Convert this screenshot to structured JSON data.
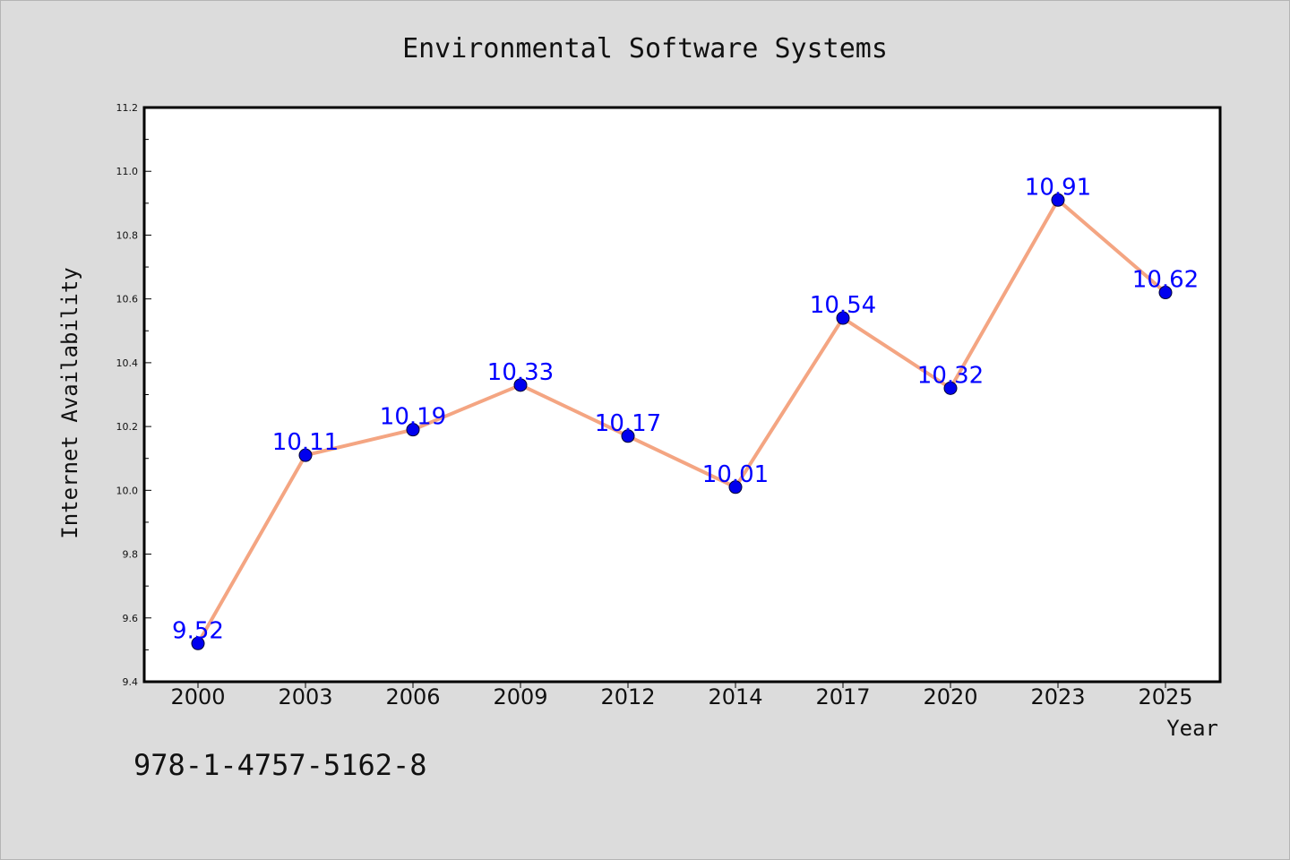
{
  "chart_data": {
    "type": "line",
    "title": "Environmental Software Systems",
    "xlabel": "Year",
    "ylabel": "Internet Availability",
    "categories": [
      "2000",
      "2003",
      "2006",
      "2009",
      "2012",
      "2014",
      "2017",
      "2020",
      "2023",
      "2025"
    ],
    "series": [
      {
        "values": [
          9.52,
          10.11,
          10.19,
          10.33,
          10.17,
          10.01,
          10.54,
          10.32,
          10.91,
          10.62
        ]
      }
    ],
    "data_labels": [
      "9.52",
      "10.11",
      "10.19",
      "10.33",
      "10.17",
      "10.01",
      "10.54",
      "10.32",
      "10.91",
      "10.62"
    ],
    "ylim": [
      9.4,
      11.2
    ],
    "yticks": [
      "9.4",
      "9.6",
      "9.8",
      "10.0",
      "10.2",
      "10.4",
      "10.6",
      "10.8",
      "11.0",
      "11.2"
    ],
    "grid": false,
    "colors": {
      "line": "#f4a582",
      "marker": "#0000ee",
      "label": "#0000ff",
      "background": "#dcdcdc",
      "plot_area": "#ffffff"
    }
  },
  "footer": {
    "isbn": "978-1-4757-5162-8"
  }
}
